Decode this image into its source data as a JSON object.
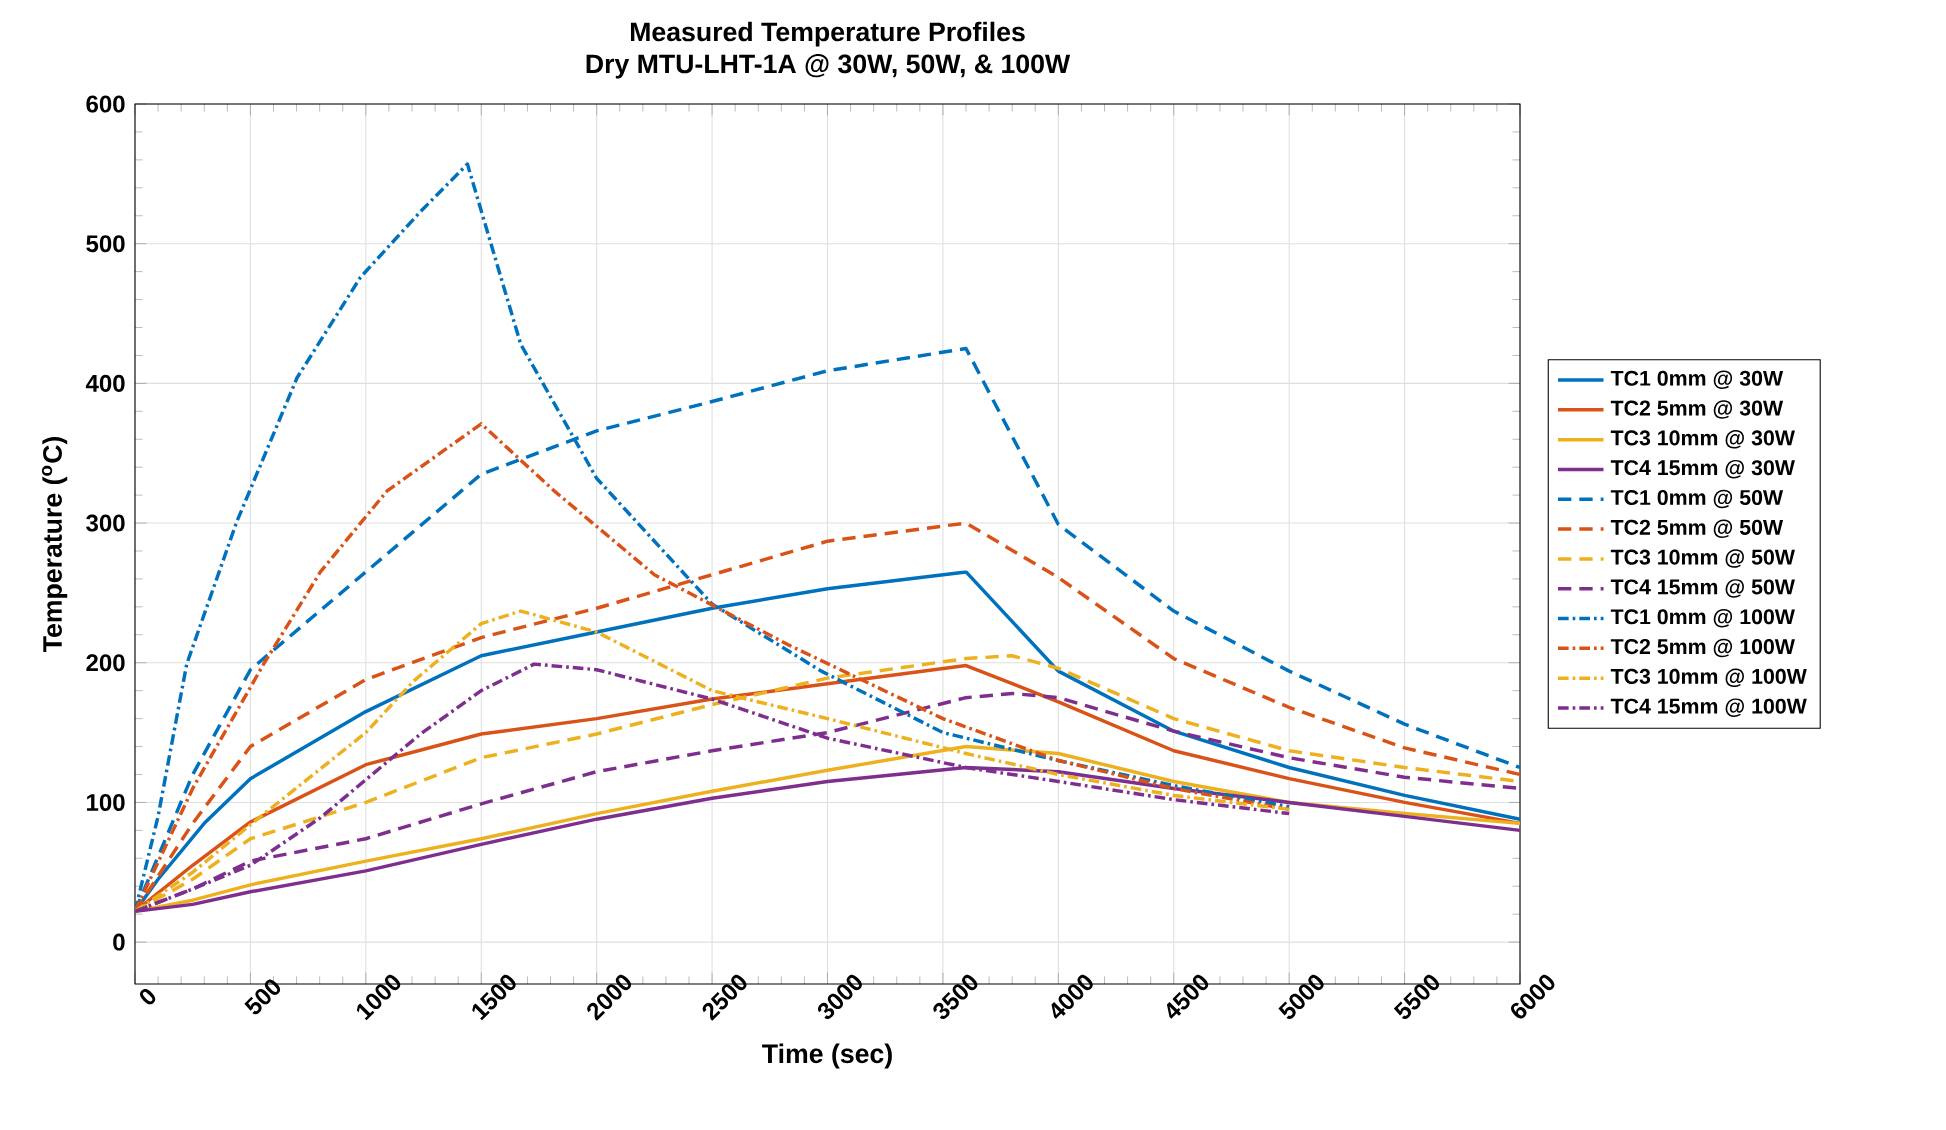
{
  "chart_data": {
    "type": "line",
    "title": "Measured Temperature Profiles",
    "subtitle": "Dry MTU-LHT-1A @ 30W, 50W, & 100W",
    "xlabel": "Time (sec)",
    "ylabel": "Temperature ($^{o}$C)",
    "xlim": [
      0,
      6000
    ],
    "ylim": [
      -30,
      600
    ],
    "xticks": [
      0,
      500,
      1000,
      1500,
      2000,
      2500,
      3000,
      3500,
      4000,
      4500,
      5000,
      5500,
      6000
    ],
    "yticks": [
      0,
      100,
      200,
      300,
      400,
      500,
      600
    ],
    "grid": true,
    "legend": "right",
    "series": [
      {
        "name": "TC1 0mm @ 30W",
        "color": "#0072bd",
        "line_style": "solid",
        "x": [
          0,
          100,
          200,
          300,
          500,
          1000,
          1500,
          2000,
          2500,
          3000,
          3600,
          4000,
          4500,
          5000,
          5500,
          6000
        ],
        "values": [
          22,
          45,
          65,
          85,
          117,
          165,
          205,
          222,
          239,
          253,
          265,
          194,
          151,
          125,
          105,
          88
        ]
      },
      {
        "name": "TC2 5mm @ 30W",
        "color": "#d95319",
        "line_style": "solid",
        "x": [
          0,
          250,
          500,
          1000,
          1500,
          2000,
          2500,
          3000,
          3600,
          4000,
          4500,
          5000,
          5500,
          6000
        ],
        "values": [
          22,
          55,
          86,
          127,
          149,
          160,
          174,
          185,
          198,
          172,
          137,
          117,
          100,
          85
        ]
      },
      {
        "name": "TC3 10mm @ 30W",
        "color": "#edb120",
        "line_style": "solid",
        "x": [
          0,
          250,
          500,
          1000,
          1500,
          2000,
          2500,
          3000,
          3600,
          4000,
          4500,
          5000,
          5500,
          6000
        ],
        "values": [
          22,
          30,
          41,
          58,
          74,
          92,
          108,
          123,
          140,
          135,
          115,
          100,
          92,
          85
        ]
      },
      {
        "name": "TC4 15mm @ 30W",
        "color": "#7e2f8e",
        "line_style": "solid",
        "x": [
          0,
          250,
          500,
          1000,
          1500,
          2000,
          2500,
          3000,
          3600,
          4000,
          4500,
          5000,
          5500,
          6000
        ],
        "values": [
          22,
          27,
          36,
          51,
          70,
          88,
          103,
          115,
          125,
          122,
          110,
          100,
          90,
          80
        ]
      },
      {
        "name": "TC1 0mm @ 50W",
        "color": "#0072bd",
        "line_style": "dashed",
        "x": [
          0,
          250,
          500,
          1000,
          1500,
          2000,
          2500,
          3000,
          3600,
          4000,
          4500,
          5000,
          5500,
          6000
        ],
        "values": [
          22,
          120,
          195,
          265,
          335,
          366,
          387,
          409,
          425,
          299,
          237,
          194,
          156,
          125
        ]
      },
      {
        "name": "TC2 5mm @ 50W",
        "color": "#d95319",
        "line_style": "dashed",
        "x": [
          0,
          250,
          500,
          1000,
          1500,
          2000,
          2500,
          3000,
          3600,
          4000,
          4500,
          5000,
          5500,
          6000
        ],
        "values": [
          22,
          85,
          140,
          188,
          218,
          239,
          263,
          287,
          300,
          261,
          203,
          168,
          139,
          120
        ]
      },
      {
        "name": "TC3 10mm @ 50W",
        "color": "#edb120",
        "line_style": "dashed",
        "x": [
          0,
          250,
          500,
          1000,
          1500,
          2000,
          2500,
          3000,
          3600,
          3800,
          4000,
          4500,
          5000,
          5500,
          6000
        ],
        "values": [
          22,
          45,
          74,
          100,
          132,
          149,
          170,
          189,
          203,
          205,
          196,
          160,
          137,
          125,
          115
        ]
      },
      {
        "name": "TC4 15mm @ 50W",
        "color": "#7e2f8e",
        "line_style": "dashed",
        "x": [
          0,
          250,
          500,
          1000,
          1500,
          2000,
          2500,
          3000,
          3600,
          3800,
          4000,
          4500,
          5000,
          5500,
          6000
        ],
        "values": [
          22,
          38,
          58,
          74,
          99,
          122,
          137,
          150,
          175,
          178,
          175,
          151,
          132,
          118,
          110
        ]
      },
      {
        "name": "TC1 0mm @ 100W",
        "color": "#0072bd",
        "line_style": "dashdot",
        "x": [
          0,
          100,
          224,
          441,
          702,
          977,
          1237,
          1440,
          1671,
          2000,
          2500,
          2973,
          3500,
          4000,
          4500,
          5000
        ],
        "values": [
          22,
          90,
          199,
          301,
          404,
          476,
          523,
          557,
          428,
          332,
          242,
          194,
          150,
          130,
          112,
          97
        ]
      },
      {
        "name": "TC2 5mm @ 100W",
        "color": "#d95319",
        "line_style": "dashdot",
        "x": [
          0,
          250,
          557,
          803,
          1092,
          1500,
          1816,
          2250,
          2828,
          3500,
          4000,
          4500,
          5000
        ],
        "values": [
          22,
          110,
          199,
          265,
          323,
          371,
          323,
          263,
          213,
          160,
          130,
          110,
          95
        ]
      },
      {
        "name": "TC3 10mm @ 100W",
        "color": "#edb120",
        "line_style": "dashdot",
        "x": [
          0,
          250,
          500,
          1000,
          1208,
          1500,
          1671,
          2000,
          2500,
          3000,
          3600,
          4000,
          4500,
          5000
        ],
        "values": [
          22,
          50,
          84,
          150,
          187,
          228,
          237,
          222,
          180,
          160,
          135,
          120,
          105,
          95
        ]
      },
      {
        "name": "TC4 15mm @ 100W",
        "color": "#7e2f8e",
        "line_style": "dashdot",
        "x": [
          0,
          250,
          500,
          803,
          1237,
          1500,
          1729,
          2000,
          2500,
          3000,
          3600,
          4000,
          4500,
          5000
        ],
        "values": [
          22,
          38,
          55,
          89,
          149,
          180,
          199,
          195,
          174,
          146,
          125,
          115,
          102,
          92
        ]
      }
    ]
  }
}
